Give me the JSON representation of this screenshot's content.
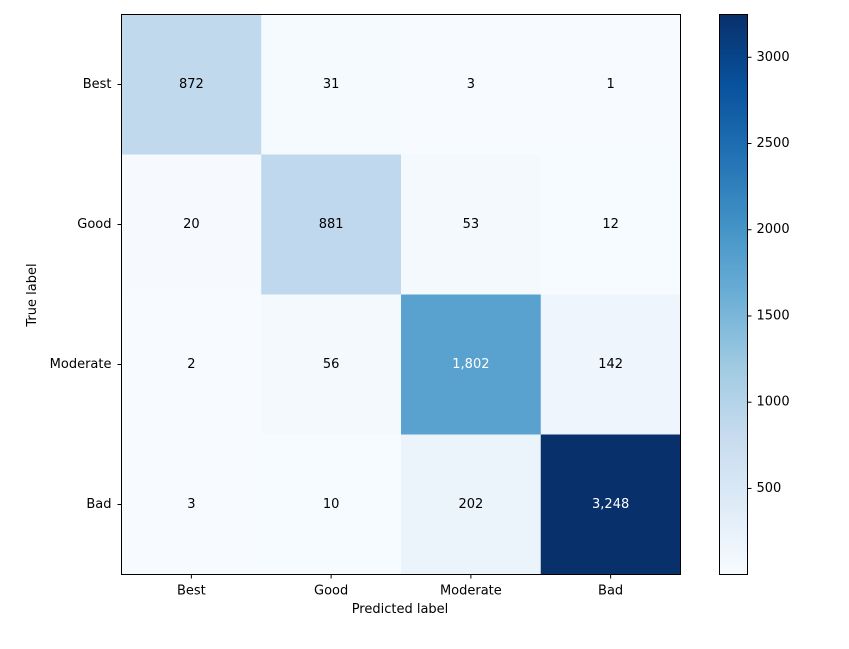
{
  "chart_data": {
    "type": "heatmap",
    "title": "",
    "xlabel": "Predicted label",
    "ylabel": "True label",
    "x_categories": [
      "Best",
      "Good",
      "Moderate",
      "Bad"
    ],
    "y_categories": [
      "Best",
      "Good",
      "Moderate",
      "Bad"
    ],
    "matrix": [
      [
        872,
        31,
        3,
        1
      ],
      [
        20,
        881,
        53,
        12
      ],
      [
        2,
        56,
        1802,
        142
      ],
      [
        3,
        10,
        202,
        3248
      ]
    ],
    "cell_labels": [
      [
        "872",
        "31",
        "3",
        "1"
      ],
      [
        "20",
        "881",
        "53",
        "12"
      ],
      [
        "2",
        "56",
        "1,802",
        "142"
      ],
      [
        "3",
        "10",
        "202",
        "3,248"
      ]
    ],
    "colormap": "Blues",
    "colorbar": {
      "range": [
        1,
        3248
      ],
      "ticks": [
        500,
        1000,
        1500,
        2000,
        2500,
        3000
      ],
      "tick_labels": [
        "500",
        "1000",
        "1500",
        "2000",
        "2500",
        "3000"
      ]
    }
  }
}
